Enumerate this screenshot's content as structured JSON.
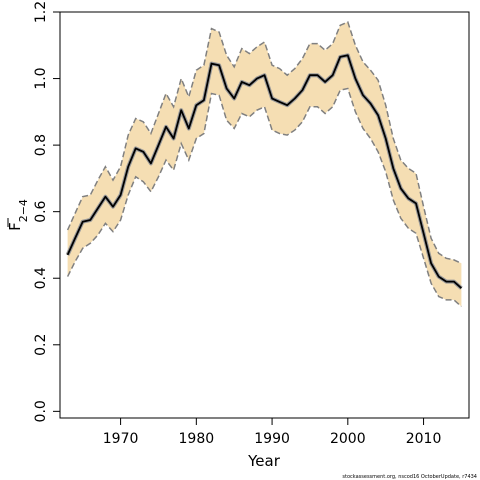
{
  "chart_data": {
    "type": "line",
    "title": "",
    "xlabel": "Year",
    "ylabel": "F",
    "ylabel_subscript": "2−4",
    "xlim": [
      1962,
      2016
    ],
    "ylim": [
      -0.02,
      1.2
    ],
    "x_ticks": [
      1970,
      1980,
      1990,
      2000,
      2010
    ],
    "y_ticks": [
      0.0,
      0.2,
      0.4,
      0.6,
      0.8,
      1.0,
      1.2
    ],
    "x_tick_labels": [
      "1970",
      "1980",
      "1990",
      "2000",
      "2010"
    ],
    "y_tick_labels": [
      "0.0",
      "0.2",
      "0.4",
      "0.6",
      "0.8",
      "1.0",
      "1.2"
    ],
    "grid": false,
    "legend": "none",
    "colors": {
      "band": "#f5deb3",
      "line": "#000000",
      "bounds": "#808080"
    },
    "series": [
      {
        "x": [
          1963,
          1964,
          1965,
          1966,
          1967,
          1968,
          1969,
          1970,
          1971,
          1972,
          1973,
          1974,
          1975,
          1976,
          1977,
          1978,
          1979,
          1980,
          1981,
          1982,
          1983,
          1984,
          1985,
          1986,
          1987,
          1988,
          1989,
          1990,
          1991,
          1992,
          1993,
          1994,
          1995,
          1996,
          1997,
          1998,
          1999,
          2000,
          2001,
          2002,
          2003,
          2004,
          2005,
          2006,
          2007,
          2008,
          2009,
          2010,
          2011,
          2012,
          2013,
          2014,
          2015
        ],
        "values": [
          0.47,
          0.52,
          0.57,
          0.575,
          0.61,
          0.645,
          0.615,
          0.65,
          0.735,
          0.79,
          0.78,
          0.745,
          0.8,
          0.855,
          0.82,
          0.905,
          0.85,
          0.92,
          0.935,
          1.045,
          1.04,
          0.97,
          0.94,
          0.99,
          0.98,
          1.0,
          1.01,
          0.94,
          0.93,
          0.92,
          0.94,
          0.965,
          1.01,
          1.01,
          0.99,
          1.01,
          1.065,
          1.07,
          1.0,
          0.95,
          0.925,
          0.89,
          0.82,
          0.73,
          0.67,
          0.64,
          0.625,
          0.535,
          0.445,
          0.405,
          0.39,
          0.39,
          0.37
        ],
        "lower": [
          0.405,
          0.45,
          0.49,
          0.505,
          0.53,
          0.565,
          0.54,
          0.575,
          0.65,
          0.705,
          0.69,
          0.66,
          0.705,
          0.755,
          0.725,
          0.805,
          0.755,
          0.82,
          0.835,
          0.955,
          0.95,
          0.875,
          0.85,
          0.895,
          0.885,
          0.905,
          0.915,
          0.845,
          0.835,
          0.83,
          0.845,
          0.87,
          0.915,
          0.915,
          0.895,
          0.915,
          0.965,
          0.97,
          0.9,
          0.85,
          0.82,
          0.78,
          0.72,
          0.635,
          0.58,
          0.55,
          0.535,
          0.46,
          0.385,
          0.345,
          0.335,
          0.335,
          0.315
        ],
        "upper": [
          0.545,
          0.595,
          0.645,
          0.65,
          0.695,
          0.735,
          0.695,
          0.735,
          0.83,
          0.88,
          0.87,
          0.835,
          0.895,
          0.955,
          0.915,
          1.0,
          0.945,
          1.025,
          1.04,
          1.15,
          1.14,
          1.07,
          1.035,
          1.09,
          1.075,
          1.095,
          1.11,
          1.04,
          1.03,
          1.01,
          1.03,
          1.06,
          1.105,
          1.105,
          1.085,
          1.105,
          1.16,
          1.17,
          1.1,
          1.05,
          1.025,
          0.995,
          0.92,
          0.82,
          0.755,
          0.73,
          0.715,
          0.615,
          0.52,
          0.475,
          0.46,
          0.455,
          0.445
        ]
      }
    ]
  },
  "credit": "stockassessment.org, nscod16 OctoberUpdate, r7434"
}
